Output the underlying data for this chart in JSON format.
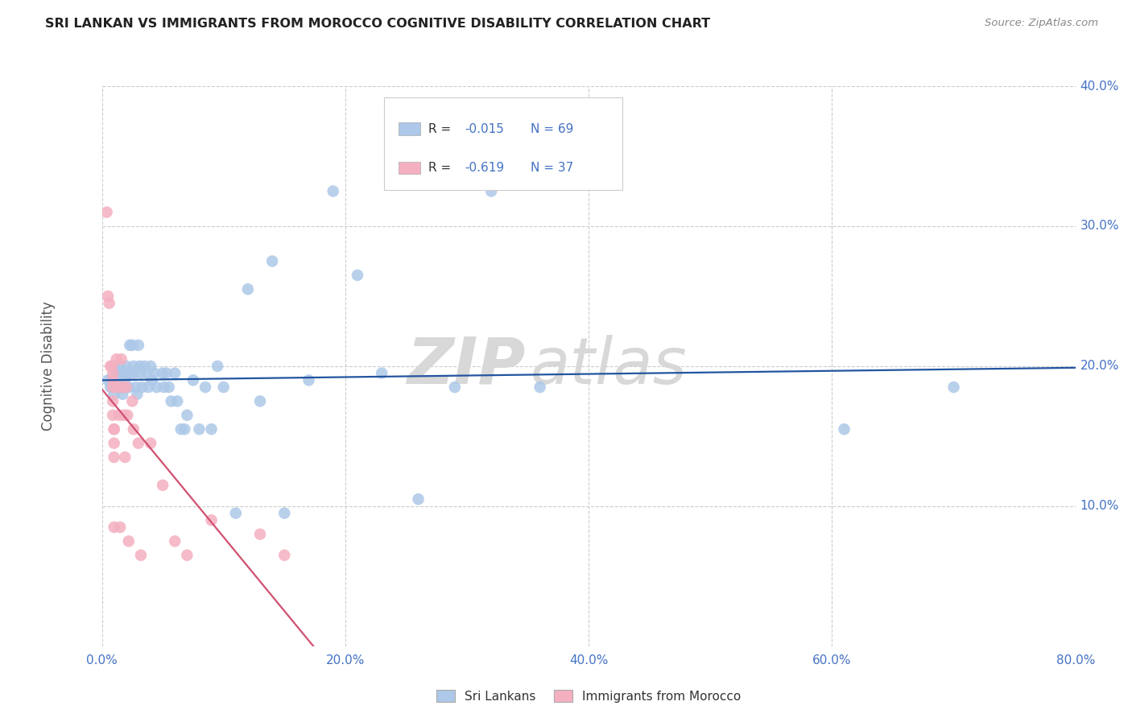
{
  "title": "SRI LANKAN VS IMMIGRANTS FROM MOROCCO COGNITIVE DISABILITY CORRELATION CHART",
  "source": "Source: ZipAtlas.com",
  "xlabel_ticks": [
    "0.0%",
    "20.0%",
    "40.0%",
    "60.0%",
    "80.0%"
  ],
  "ylabel_ticks": [
    "40.0%",
    "30.0%",
    "20.0%",
    "10.0%",
    ""
  ],
  "ylabel_ticks_vals": [
    0.4,
    0.3,
    0.2,
    0.1,
    0.0
  ],
  "xlim": [
    0,
    0.8
  ],
  "ylim": [
    0,
    0.4
  ],
  "legend_label1": "Sri Lankans",
  "legend_label2": "Immigrants from Morocco",
  "R1": "-0.015",
  "N1": "69",
  "R2": "-0.619",
  "N2": "37",
  "color1": "#adc8e8",
  "color2": "#f4b0c0",
  "line_color1": "#2255a0",
  "line_color2": "#d05070",
  "text_color_blue": "#4472c4",
  "text_color_dark": "#333333",
  "sri_lankans_x": [
    0.005,
    0.007,
    0.008,
    0.009,
    0.01,
    0.01,
    0.01,
    0.012,
    0.013,
    0.014,
    0.015,
    0.015,
    0.016,
    0.017,
    0.018,
    0.019,
    0.02,
    0.02,
    0.021,
    0.022,
    0.023,
    0.024,
    0.025,
    0.026,
    0.027,
    0.028,
    0.029,
    0.03,
    0.031,
    0.032,
    0.033,
    0.035,
    0.037,
    0.038,
    0.04,
    0.041,
    0.043,
    0.045,
    0.05,
    0.051,
    0.053,
    0.055,
    0.057,
    0.06,
    0.062,
    0.065,
    0.068,
    0.07,
    0.075,
    0.08,
    0.085,
    0.09,
    0.095,
    0.1,
    0.11,
    0.12,
    0.13,
    0.14,
    0.15,
    0.17,
    0.19,
    0.21,
    0.23,
    0.26,
    0.29,
    0.32,
    0.36,
    0.61,
    0.7
  ],
  "sri_lankans_y": [
    0.19,
    0.185,
    0.19,
    0.185,
    0.2,
    0.185,
    0.18,
    0.195,
    0.185,
    0.19,
    0.2,
    0.185,
    0.195,
    0.18,
    0.185,
    0.19,
    0.2,
    0.185,
    0.195,
    0.185,
    0.215,
    0.195,
    0.215,
    0.2,
    0.195,
    0.185,
    0.18,
    0.215,
    0.2,
    0.195,
    0.185,
    0.2,
    0.195,
    0.185,
    0.2,
    0.19,
    0.195,
    0.185,
    0.195,
    0.185,
    0.195,
    0.185,
    0.175,
    0.195,
    0.175,
    0.155,
    0.155,
    0.165,
    0.19,
    0.155,
    0.185,
    0.155,
    0.2,
    0.185,
    0.095,
    0.255,
    0.175,
    0.275,
    0.095,
    0.19,
    0.325,
    0.265,
    0.195,
    0.105,
    0.185,
    0.325,
    0.185,
    0.155,
    0.185
  ],
  "morocco_x": [
    0.004,
    0.005,
    0.006,
    0.007,
    0.008,
    0.009,
    0.009,
    0.009,
    0.009,
    0.009,
    0.01,
    0.01,
    0.01,
    0.01,
    0.01,
    0.012,
    0.013,
    0.014,
    0.015,
    0.016,
    0.017,
    0.018,
    0.019,
    0.02,
    0.021,
    0.022,
    0.025,
    0.026,
    0.03,
    0.032,
    0.04,
    0.05,
    0.06,
    0.07,
    0.09,
    0.13,
    0.15
  ],
  "morocco_y": [
    0.31,
    0.25,
    0.245,
    0.2,
    0.2,
    0.195,
    0.19,
    0.185,
    0.175,
    0.165,
    0.155,
    0.155,
    0.145,
    0.135,
    0.085,
    0.205,
    0.185,
    0.165,
    0.085,
    0.205,
    0.185,
    0.165,
    0.135,
    0.185,
    0.165,
    0.075,
    0.175,
    0.155,
    0.145,
    0.065,
    0.145,
    0.115,
    0.075,
    0.065,
    0.09,
    0.08,
    0.065
  ],
  "watermark_zip": "ZIP",
  "watermark_atlas": "atlas",
  "background_color": "#ffffff",
  "grid_color": "#cccccc"
}
